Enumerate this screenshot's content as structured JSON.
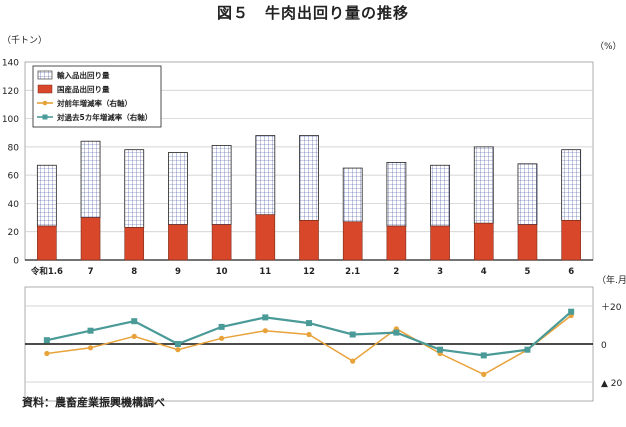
{
  "title": "図５　牛肉出回り量の推移",
  "source": "資料：農畜産業振興機構調べ",
  "chart_data": [
    {
      "type": "bar",
      "stacked": true,
      "y_unit_label": "（千トン）",
      "x_unit_label": "（年.月）",
      "ylim": [
        0,
        140
      ],
      "yticks": [
        0,
        20,
        40,
        60,
        80,
        100,
        120,
        140
      ],
      "categories": [
        "令和1.6",
        "7",
        "8",
        "9",
        "10",
        "11",
        "12",
        "2.1",
        "2",
        "3",
        "4",
        "5",
        "6"
      ],
      "series": [
        {
          "name": "国産品出回り量",
          "color": "#d9472b",
          "values": [
            24,
            30,
            23,
            25,
            25,
            32,
            28,
            27,
            24,
            24,
            26,
            25,
            28
          ]
        },
        {
          "name": "輸入品出回り量",
          "color": "#e8ecf8",
          "values": [
            43,
            54,
            55,
            51,
            56,
            56,
            60,
            38,
            45,
            43,
            54,
            43,
            50
          ]
        }
      ],
      "grid": true,
      "legend": "top-left"
    },
    {
      "type": "line",
      "y_unit_label": "（%）",
      "ylim": [
        -30,
        30
      ],
      "ytick_labels": [
        "＋20",
        "0",
        "▲ 20"
      ],
      "ytick_values": [
        20,
        0,
        -20
      ],
      "categories": [
        "令和1.6",
        "7",
        "8",
        "9",
        "10",
        "11",
        "12",
        "2.1",
        "2",
        "3",
        "4",
        "5",
        "6"
      ],
      "series": [
        {
          "name": "対前年増減率（右軸）",
          "color": "#e8a23a",
          "values": [
            -5,
            -2,
            4,
            -3,
            3,
            7,
            5,
            -9,
            8,
            -5,
            -16,
            -3,
            15
          ]
        },
        {
          "name": "対過去5カ年増減率（右軸）",
          "color": "#4a9a98",
          "values": [
            2,
            7,
            12,
            0,
            9,
            14,
            11,
            5,
            6,
            -3,
            -6,
            -3,
            17
          ]
        }
      ],
      "grid": true,
      "legend": "none"
    }
  ]
}
